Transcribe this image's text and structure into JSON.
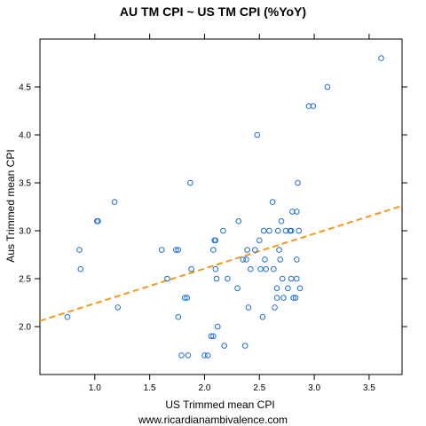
{
  "chart_data": {
    "type": "scatter",
    "title": "AU TM CPI ~ US TM CPI (%YoY)",
    "xlabel": "US Trimmed mean CPI",
    "ylabel": "Aus Trimmed mean CPI",
    "caption": "www.ricardianambivalence.com",
    "xlim": [
      0.5,
      3.8
    ],
    "ylim": [
      1.5,
      5.0
    ],
    "xticks": [
      1.0,
      1.5,
      2.0,
      2.5,
      3.0,
      3.5
    ],
    "xtick_labels": [
      "1.0",
      "1.5",
      "2.0",
      "2.5",
      "3.0",
      "3.5"
    ],
    "yticks": [
      2.0,
      2.5,
      3.0,
      3.5,
      4.0,
      4.5
    ],
    "ytick_labels": [
      "2.0",
      "2.5",
      "3.0",
      "3.5",
      "4.0",
      "4.5"
    ],
    "grid": false,
    "point_color": "#1f6fd6",
    "trend_color": "#f39a1e",
    "trendline": {
      "x": [
        0.5,
        3.8
      ],
      "y": [
        2.06,
        3.26
      ]
    },
    "points": [
      {
        "x": 0.75,
        "y": 2.1
      },
      {
        "x": 0.86,
        "y": 2.8
      },
      {
        "x": 0.87,
        "y": 2.6
      },
      {
        "x": 1.02,
        "y": 3.1
      },
      {
        "x": 1.03,
        "y": 3.1
      },
      {
        "x": 1.18,
        "y": 3.3
      },
      {
        "x": 1.21,
        "y": 2.2
      },
      {
        "x": 1.61,
        "y": 2.8
      },
      {
        "x": 1.66,
        "y": 2.5
      },
      {
        "x": 1.74,
        "y": 2.8
      },
      {
        "x": 1.76,
        "y": 2.8
      },
      {
        "x": 1.76,
        "y": 2.1
      },
      {
        "x": 1.79,
        "y": 1.7
      },
      {
        "x": 1.82,
        "y": 2.3
      },
      {
        "x": 1.84,
        "y": 2.3
      },
      {
        "x": 1.85,
        "y": 1.7
      },
      {
        "x": 1.87,
        "y": 3.5
      },
      {
        "x": 1.88,
        "y": 2.6
      },
      {
        "x": 2.0,
        "y": 1.7
      },
      {
        "x": 2.03,
        "y": 1.7
      },
      {
        "x": 2.06,
        "y": 1.9
      },
      {
        "x": 2.08,
        "y": 1.9
      },
      {
        "x": 2.08,
        "y": 2.8
      },
      {
        "x": 2.09,
        "y": 2.9
      },
      {
        "x": 2.1,
        "y": 2.9
      },
      {
        "x": 2.1,
        "y": 2.6
      },
      {
        "x": 2.11,
        "y": 2.5
      },
      {
        "x": 2.12,
        "y": 2.0
      },
      {
        "x": 2.17,
        "y": 3.0
      },
      {
        "x": 2.18,
        "y": 1.8
      },
      {
        "x": 2.21,
        "y": 2.5
      },
      {
        "x": 2.3,
        "y": 2.4
      },
      {
        "x": 2.31,
        "y": 3.1
      },
      {
        "x": 2.35,
        "y": 2.7
      },
      {
        "x": 2.37,
        "y": 1.8
      },
      {
        "x": 2.38,
        "y": 2.7
      },
      {
        "x": 2.39,
        "y": 2.8
      },
      {
        "x": 2.4,
        "y": 2.2
      },
      {
        "x": 2.42,
        "y": 2.6
      },
      {
        "x": 2.46,
        "y": 2.8
      },
      {
        "x": 2.48,
        "y": 4.0
      },
      {
        "x": 2.5,
        "y": 2.9
      },
      {
        "x": 2.51,
        "y": 2.6
      },
      {
        "x": 2.53,
        "y": 2.1
      },
      {
        "x": 2.54,
        "y": 3.0
      },
      {
        "x": 2.55,
        "y": 2.7
      },
      {
        "x": 2.56,
        "y": 2.6
      },
      {
        "x": 2.59,
        "y": 3.0
      },
      {
        "x": 2.62,
        "y": 3.3
      },
      {
        "x": 2.63,
        "y": 2.6
      },
      {
        "x": 2.64,
        "y": 2.2
      },
      {
        "x": 2.66,
        "y": 2.4
      },
      {
        "x": 2.66,
        "y": 2.3
      },
      {
        "x": 2.67,
        "y": 3.0
      },
      {
        "x": 2.68,
        "y": 2.8
      },
      {
        "x": 2.69,
        "y": 2.7
      },
      {
        "x": 2.7,
        "y": 3.1
      },
      {
        "x": 2.71,
        "y": 2.5
      },
      {
        "x": 2.72,
        "y": 2.3
      },
      {
        "x": 2.74,
        "y": 3.0
      },
      {
        "x": 2.76,
        "y": 2.4
      },
      {
        "x": 2.78,
        "y": 3.0
      },
      {
        "x": 2.79,
        "y": 2.5
      },
      {
        "x": 2.79,
        "y": 3.0
      },
      {
        "x": 2.8,
        "y": 3.2
      },
      {
        "x": 2.81,
        "y": 2.3
      },
      {
        "x": 2.83,
        "y": 2.3
      },
      {
        "x": 2.84,
        "y": 2.5
      },
      {
        "x": 2.84,
        "y": 2.7
      },
      {
        "x": 2.84,
        "y": 3.2
      },
      {
        "x": 2.85,
        "y": 3.5
      },
      {
        "x": 2.86,
        "y": 3.0
      },
      {
        "x": 2.87,
        "y": 2.4
      },
      {
        "x": 2.95,
        "y": 4.3
      },
      {
        "x": 2.99,
        "y": 4.3
      },
      {
        "x": 3.12,
        "y": 4.5
      },
      {
        "x": 3.61,
        "y": 4.8
      }
    ]
  }
}
